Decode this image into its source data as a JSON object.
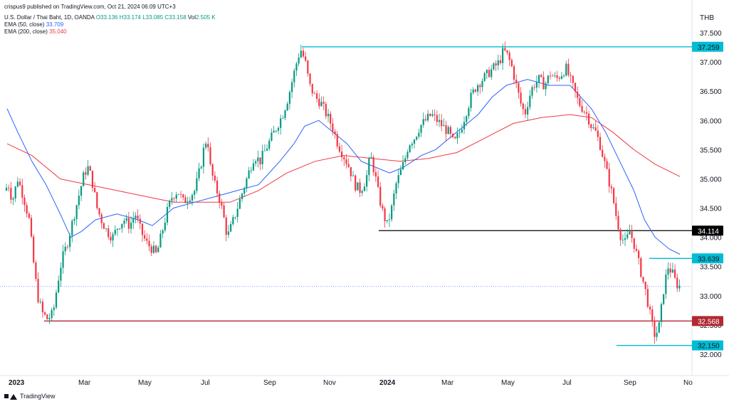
{
  "header": {
    "published": "crispus9 published on TradingView.com, Oct 21, 2024 06:09 UTC+3"
  },
  "legend": {
    "symbol": "U.S. Dollar / Thai Baht, 1D, OANDA",
    "o": "O33.136",
    "h": "H33.174",
    "l": "L33.085",
    "c": "C33.158",
    "vol_label": "Vol",
    "vol": "2.505 K",
    "ema50_label": "EMA (50, close)",
    "ema50_value": "33.709",
    "ema200_label": "EMA (200, close)",
    "ema200_value": "35.040"
  },
  "footer": {
    "brand": "TradingView"
  },
  "colors": {
    "up": "#089981",
    "down": "#f23645",
    "ema50": "#2962ff",
    "ema200": "#f23645",
    "cyan": "#00bcd4",
    "black": "#000000",
    "darkred": "#b22833"
  },
  "chart_data": {
    "type": "line",
    "title": "U.S. Dollar / Thai Baht, 1D, OANDA",
    "currency": "THB",
    "ylim": [
      31.85,
      37.6
    ],
    "y_ticks": [
      "37.500",
      "37.000",
      "36.500",
      "36.000",
      "35.500",
      "35.000",
      "34.500",
      "34.000",
      "33.500",
      "33.000",
      "32.500",
      "32.000"
    ],
    "x_ticks": [
      "2023",
      "Mar",
      "May",
      "Jul",
      "Sep",
      "Nov",
      "2024",
      "Mar",
      "May",
      "Jul",
      "Sep",
      "No"
    ],
    "x_ticks_bold": [
      "2023",
      "2024"
    ],
    "levels": [
      {
        "value": 37.259,
        "label": "37.259",
        "color": "#00bcd4"
      },
      {
        "value": 34.114,
        "label": "34.114",
        "color": "#000000"
      },
      {
        "value": 33.639,
        "label": "33.639",
        "color": "#00bcd4"
      },
      {
        "value": 32.568,
        "label": "32.568",
        "color": "#b22833"
      },
      {
        "value": 32.15,
        "label": "32.150",
        "color": "#00bcd4"
      }
    ],
    "last_price": 33.158,
    "price_path": [
      [
        0,
        34.8
      ],
      [
        8,
        34.9
      ],
      [
        12,
        34.6
      ],
      [
        20,
        35.0
      ],
      [
        28,
        34.7
      ],
      [
        36,
        34.3
      ],
      [
        42,
        33.6
      ],
      [
        48,
        33.0
      ],
      [
        55,
        32.7
      ],
      [
        62,
        32.6
      ],
      [
        70,
        32.7
      ],
      [
        76,
        33.2
      ],
      [
        82,
        33.6
      ],
      [
        90,
        33.9
      ],
      [
        98,
        34.3
      ],
      [
        106,
        34.7
      ],
      [
        114,
        35.1
      ],
      [
        120,
        35.2
      ],
      [
        126,
        34.9
      ],
      [
        132,
        34.5
      ],
      [
        138,
        34.3
      ],
      [
        146,
        34.1
      ],
      [
        154,
        34.0
      ],
      [
        162,
        34.2
      ],
      [
        170,
        34.3
      ],
      [
        178,
        34.2
      ],
      [
        186,
        34.4
      ],
      [
        194,
        34.1
      ],
      [
        202,
        33.9
      ],
      [
        210,
        33.8
      ],
      [
        216,
        33.7
      ],
      [
        222,
        34.0
      ],
      [
        230,
        34.4
      ],
      [
        238,
        34.7
      ],
      [
        246,
        34.8
      ],
      [
        254,
        34.6
      ],
      [
        262,
        34.7
      ],
      [
        270,
        34.8
      ],
      [
        278,
        35.2
      ],
      [
        284,
        35.6
      ],
      [
        288,
        35.7
      ],
      [
        292,
        35.2
      ],
      [
        298,
        34.9
      ],
      [
        304,
        34.7
      ],
      [
        310,
        34.4
      ],
      [
        316,
        34.0
      ],
      [
        322,
        34.2
      ],
      [
        330,
        34.5
      ],
      [
        338,
        34.8
      ],
      [
        346,
        35.1
      ],
      [
        354,
        35.4
      ],
      [
        362,
        35.3
      ],
      [
        370,
        35.5
      ],
      [
        378,
        35.7
      ],
      [
        386,
        35.9
      ],
      [
        394,
        36.1
      ],
      [
        402,
        36.4
      ],
      [
        410,
        36.8
      ],
      [
        416,
        37.1
      ],
      [
        420,
        37.2
      ],
      [
        426,
        37.0
      ],
      [
        432,
        36.6
      ],
      [
        440,
        36.4
      ],
      [
        448,
        36.3
      ],
      [
        456,
        36.1
      ],
      [
        464,
        35.9
      ],
      [
        472,
        35.6
      ],
      [
        480,
        35.4
      ],
      [
        488,
        35.2
      ],
      [
        496,
        34.9
      ],
      [
        504,
        34.8
      ],
      [
        512,
        35.0
      ],
      [
        518,
        35.4
      ],
      [
        524,
        35.1
      ],
      [
        530,
        34.7
      ],
      [
        536,
        34.4
      ],
      [
        542,
        34.2
      ],
      [
        548,
        34.5
      ],
      [
        554,
        34.9
      ],
      [
        560,
        35.1
      ],
      [
        566,
        35.3
      ],
      [
        572,
        35.6
      ],
      [
        580,
        35.7
      ],
      [
        588,
        35.9
      ],
      [
        596,
        36.0
      ],
      [
        604,
        36.1
      ],
      [
        612,
        36.0
      ],
      [
        620,
        35.9
      ],
      [
        628,
        35.8
      ],
      [
        636,
        35.6
      ],
      [
        644,
        35.8
      ],
      [
        652,
        36.1
      ],
      [
        660,
        36.4
      ],
      [
        668,
        36.6
      ],
      [
        676,
        36.7
      ],
      [
        684,
        36.8
      ],
      [
        692,
        36.9
      ],
      [
        700,
        37.0
      ],
      [
        706,
        37.2
      ],
      [
        712,
        37.1
      ],
      [
        718,
        36.9
      ],
      [
        724,
        36.6
      ],
      [
        730,
        36.3
      ],
      [
        736,
        36.1
      ],
      [
        742,
        36.4
      ],
      [
        748,
        36.6
      ],
      [
        756,
        36.7
      ],
      [
        764,
        36.6
      ],
      [
        772,
        36.8
      ],
      [
        780,
        36.7
      ],
      [
        788,
        36.8
      ],
      [
        794,
        36.9
      ],
      [
        800,
        36.7
      ],
      [
        806,
        36.5
      ],
      [
        812,
        36.3
      ],
      [
        818,
        36.2
      ],
      [
        824,
        36.1
      ],
      [
        830,
        35.9
      ],
      [
        836,
        35.8
      ],
      [
        842,
        35.6
      ],
      [
        848,
        35.3
      ],
      [
        854,
        35.0
      ],
      [
        860,
        34.7
      ],
      [
        866,
        34.3
      ],
      [
        872,
        34.0
      ],
      [
        878,
        33.9
      ],
      [
        884,
        34.1
      ],
      [
        890,
        33.9
      ],
      [
        896,
        33.6
      ],
      [
        902,
        33.3
      ],
      [
        908,
        33.0
      ],
      [
        914,
        32.6
      ],
      [
        920,
        32.3
      ],
      [
        926,
        32.5
      ],
      [
        932,
        33.1
      ],
      [
        938,
        33.5
      ],
      [
        944,
        33.4
      ],
      [
        950,
        33.2
      ],
      [
        956,
        33.15
      ]
    ],
    "ema50_path": [
      [
        5,
        36.2
      ],
      [
        20,
        35.8
      ],
      [
        40,
        35.3
      ],
      [
        60,
        34.9
      ],
      [
        80,
        34.4
      ],
      [
        95,
        34.0
      ],
      [
        110,
        34.1
      ],
      [
        130,
        34.3
      ],
      [
        160,
        34.4
      ],
      [
        190,
        34.3
      ],
      [
        210,
        34.2
      ],
      [
        240,
        34.5
      ],
      [
        270,
        34.6
      ],
      [
        300,
        34.7
      ],
      [
        330,
        34.8
      ],
      [
        360,
        34.9
      ],
      [
        390,
        35.3
      ],
      [
        410,
        35.6
      ],
      [
        425,
        35.9
      ],
      [
        445,
        36.0
      ],
      [
        465,
        35.8
      ],
      [
        485,
        35.6
      ],
      [
        505,
        35.3
      ],
      [
        525,
        35.2
      ],
      [
        545,
        35.1
      ],
      [
        565,
        35.2
      ],
      [
        590,
        35.4
      ],
      [
        610,
        35.5
      ],
      [
        630,
        35.7
      ],
      [
        650,
        35.9
      ],
      [
        670,
        36.1
      ],
      [
        690,
        36.4
      ],
      [
        710,
        36.6
      ],
      [
        740,
        36.7
      ],
      [
        770,
        36.6
      ],
      [
        800,
        36.6
      ],
      [
        815,
        36.4
      ],
      [
        830,
        36.2
      ],
      [
        850,
        35.8
      ],
      [
        870,
        35.3
      ],
      [
        890,
        34.8
      ],
      [
        905,
        34.3
      ],
      [
        920,
        34.0
      ],
      [
        940,
        33.8
      ],
      [
        955,
        33.71
      ]
    ],
    "ema200_path": [
      [
        5,
        35.6
      ],
      [
        40,
        35.4
      ],
      [
        80,
        35.0
      ],
      [
        120,
        34.9
      ],
      [
        160,
        34.8
      ],
      [
        200,
        34.7
      ],
      [
        240,
        34.6
      ],
      [
        280,
        34.6
      ],
      [
        320,
        34.6
      ],
      [
        360,
        34.8
      ],
      [
        400,
        35.1
      ],
      [
        440,
        35.3
      ],
      [
        480,
        35.4
      ],
      [
        520,
        35.35
      ],
      [
        560,
        35.3
      ],
      [
        600,
        35.35
      ],
      [
        640,
        35.45
      ],
      [
        680,
        35.7
      ],
      [
        720,
        35.95
      ],
      [
        760,
        36.05
      ],
      [
        800,
        36.1
      ],
      [
        830,
        36.05
      ],
      [
        860,
        35.8
      ],
      [
        890,
        35.5
      ],
      [
        920,
        35.25
      ],
      [
        955,
        35.04
      ]
    ]
  }
}
